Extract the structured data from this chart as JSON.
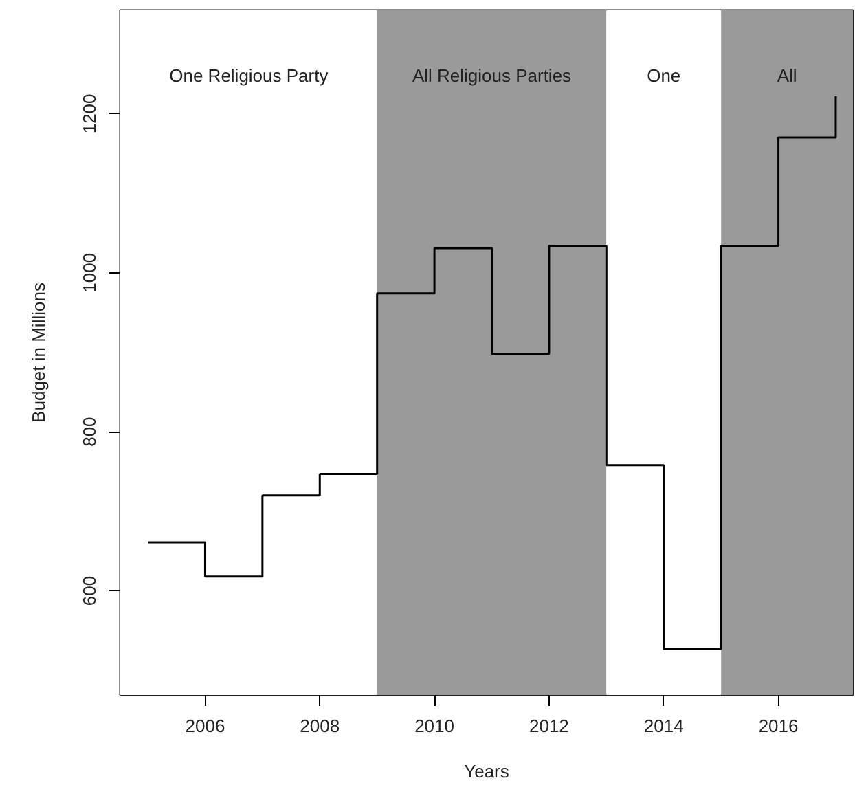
{
  "chart_data": {
    "type": "step",
    "xlabel": "Years",
    "ylabel": "Budget in Millions",
    "x": [
      2005,
      2006,
      2007,
      2008,
      2009,
      2010,
      2011,
      2012,
      2013,
      2014,
      2015,
      2016,
      2017
    ],
    "series": [
      {
        "color": "#000000",
        "values": [
          661,
          618,
          720,
          747,
          974,
          1031,
          898,
          1034,
          758,
          527,
          1034,
          1170,
          1222
        ]
      }
    ],
    "xlim": [
      2004.52,
      2017.3
    ],
    "ylim": [
      469,
      1330
    ],
    "xticks": [
      2006,
      2008,
      2010,
      2012,
      2014,
      2016
    ],
    "yticks": [
      600,
      800,
      1000,
      1200
    ],
    "bands": [
      {
        "axis": "x",
        "from": 2004.52,
        "to": 2009,
        "label": "One Religious Party",
        "color": "#ffffff"
      },
      {
        "axis": "x",
        "from": 2009,
        "to": 2013,
        "label": "All Religious Parties",
        "color": "#9a9a9a"
      },
      {
        "axis": "x",
        "from": 2013,
        "to": 2015,
        "label": "One",
        "color": "#ffffff"
      },
      {
        "axis": "x",
        "from": 2015,
        "to": 2017.3,
        "label": "All",
        "color": "#9a9a9a"
      }
    ],
    "grid": false
  }
}
